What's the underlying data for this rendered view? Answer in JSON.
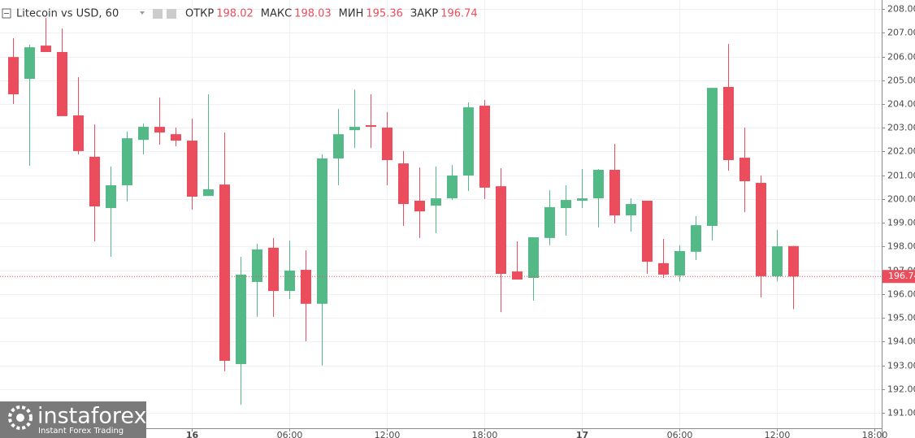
{
  "chart_data": {
    "type": "candlestick",
    "title": "Litecoin vs USD, 60",
    "ohlc_labels": [
      "ОТКР",
      "МАКС",
      "МИН",
      "ЗАКР"
    ],
    "up_color": "#53b987",
    "down_color": "#eb4d5c",
    "grid": true,
    "categories": [
      null,
      null,
      null,
      null,
      null,
      null,
      null,
      null,
      null,
      null,
      null,
      "16",
      null,
      null,
      null,
      null,
      null,
      "06:00",
      null,
      null,
      null,
      null,
      null,
      "12:00",
      null,
      null,
      null,
      null,
      null,
      "18:00",
      null,
      null,
      null,
      null,
      null,
      "17",
      null,
      null,
      null,
      null,
      null,
      "06:00",
      null,
      null,
      null,
      null,
      null,
      "12:00",
      null,
      null,
      null,
      null,
      null,
      "18:00"
    ],
    "open": [
      205.98,
      205.06,
      206.46,
      206.19,
      203.52,
      201.78,
      199.62,
      200.58,
      202.49,
      203.04,
      202.73,
      202.46,
      200.13,
      200.61,
      193.05,
      196.51,
      197.95,
      196.13,
      197.02,
      195.59,
      201.71,
      202.9,
      203.11,
      203.01,
      201.5,
      199.93,
      199.72,
      200.03,
      200.99,
      203.93,
      200.54,
      196.95,
      196.68,
      198.36,
      199.62,
      199.93,
      200.03,
      201.23,
      199.31,
      199.93,
      197.3,
      196.78,
      197.78,
      198.87,
      204.72,
      201.74,
      200.68,
      196.75,
      198.02,
      null,
      null,
      null,
      null,
      null
    ],
    "high": [
      206.77,
      206.5,
      207.62,
      207.18,
      205.13,
      203.14,
      201.37,
      202.84,
      203.18,
      204.27,
      203.01,
      203.38,
      204.41,
      202.8,
      197.57,
      198.12,
      198.36,
      198.25,
      197.84,
      201.88,
      203.79,
      204.61,
      204.41,
      203.66,
      202.02,
      201.33,
      201.37,
      201.43,
      204.07,
      204.17,
      201.3,
      198.22,
      198.39,
      200.37,
      200.58,
      201.26,
      201.26,
      202.32,
      200.03,
      199.93,
      198.32,
      198.05,
      199.28,
      204.68,
      206.53,
      203.01,
      200.99,
      198.7,
      198.03,
      null,
      null,
      null,
      null,
      null
    ],
    "low": [
      204.0,
      201.4,
      206.19,
      203.49,
      201.88,
      198.22,
      197.57,
      199.9,
      201.88,
      202.29,
      202.22,
      199.55,
      200.13,
      192.75,
      191.34,
      195.04,
      195.04,
      195.79,
      194.01,
      192.99,
      200.58,
      202.15,
      202.15,
      200.58,
      198.87,
      198.36,
      198.56,
      199.96,
      200.34,
      200.0,
      195.24,
      196.61,
      195.72,
      198.05,
      198.46,
      199.62,
      198.8,
      198.97,
      198.63,
      196.85,
      196.68,
      196.54,
      197.43,
      198.25,
      201.19,
      199.45,
      195.86,
      196.54,
      195.36,
      null,
      null,
      null,
      null,
      null
    ],
    "close": [
      204.41,
      206.39,
      206.19,
      203.49,
      202.02,
      199.69,
      200.58,
      202.56,
      203.04,
      202.8,
      202.46,
      200.1,
      200.41,
      193.19,
      196.82,
      197.88,
      196.13,
      196.99,
      195.59,
      201.71,
      202.73,
      203.04,
      203.04,
      201.64,
      199.79,
      199.48,
      200.03,
      200.99,
      203.86,
      200.48,
      196.85,
      196.61,
      198.39,
      199.66,
      199.96,
      200.03,
      201.23,
      199.31,
      199.79,
      197.36,
      196.82,
      197.81,
      198.9,
      204.68,
      201.64,
      200.75,
      196.75,
      198.01,
      196.74,
      null,
      null,
      null,
      null,
      null
    ],
    "ylim": [
      190.35,
      208.38
    ],
    "yticks": [
      {
        "value": 191,
        "label": "191.00"
      },
      {
        "value": 192,
        "label": "192.00"
      },
      {
        "value": 193,
        "label": "193.00"
      },
      {
        "value": 194,
        "label": "194.00"
      },
      {
        "value": 195,
        "label": "195.00"
      },
      {
        "value": 196,
        "label": "196.00"
      },
      {
        "value": 197,
        "label": "197.00"
      },
      {
        "value": 198,
        "label": "198.00"
      },
      {
        "value": 199,
        "label": "199.00"
      },
      {
        "value": 200,
        "label": "200.00"
      },
      {
        "value": 201,
        "label": "201.00"
      },
      {
        "value": 202,
        "label": "202.00"
      },
      {
        "value": 203,
        "label": "203.00"
      },
      {
        "value": 204,
        "label": "204.00"
      },
      {
        "value": 205,
        "label": "205.00"
      },
      {
        "value": 206,
        "label": "206.00"
      },
      {
        "value": 207,
        "label": "207.00"
      },
      {
        "value": 208,
        "label": "208.00"
      }
    ]
  },
  "watermark": {
    "brand": "instaforex",
    "tagline": "Instant Forex Trading"
  }
}
